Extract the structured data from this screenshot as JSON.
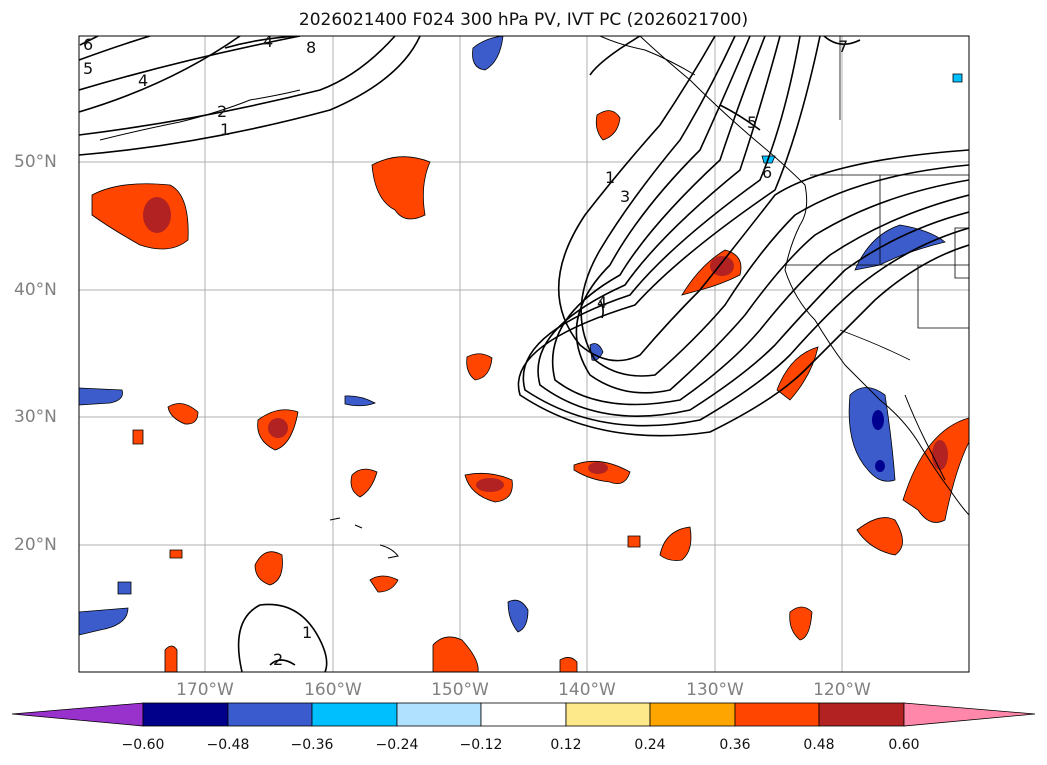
{
  "title": "2026021400 F024 300 hPa PV, IVT PC (2026021700)",
  "map": {
    "lat_labels": [
      "50°N",
      "40°N",
      "30°N",
      "20°N"
    ],
    "lon_labels": [
      "170°W",
      "160°W",
      "150°W",
      "140°W",
      "130°W",
      "120°W"
    ],
    "contour_labels": [
      "6",
      "5",
      "4",
      "4",
      "8",
      "2",
      "1",
      "1",
      "3",
      "4",
      "7",
      "5",
      "6",
      "1",
      "2"
    ],
    "shading_colors": {
      "orange_red": "#ff4500",
      "dark_red": "#b22222",
      "yellow": "#fde98a",
      "orange": "#ffa500",
      "blue": "#3c5ccc",
      "navy": "#000090",
      "cyan": "#00bfff",
      "light_blue": "#b0e2ff"
    }
  },
  "colorbar": {
    "ticks": [
      "−0.60",
      "−0.48",
      "−0.36",
      "−0.24",
      "−0.12",
      "0.12",
      "0.24",
      "0.36",
      "0.48",
      "0.60"
    ],
    "colors": [
      "#9932cc",
      "#00008b",
      "#3a5bcd",
      "#00bfff",
      "#b0e2ff",
      "#ffffff",
      "#fde98a",
      "#ffa500",
      "#ff4500",
      "#b22222",
      "#ff88aa"
    ]
  }
}
